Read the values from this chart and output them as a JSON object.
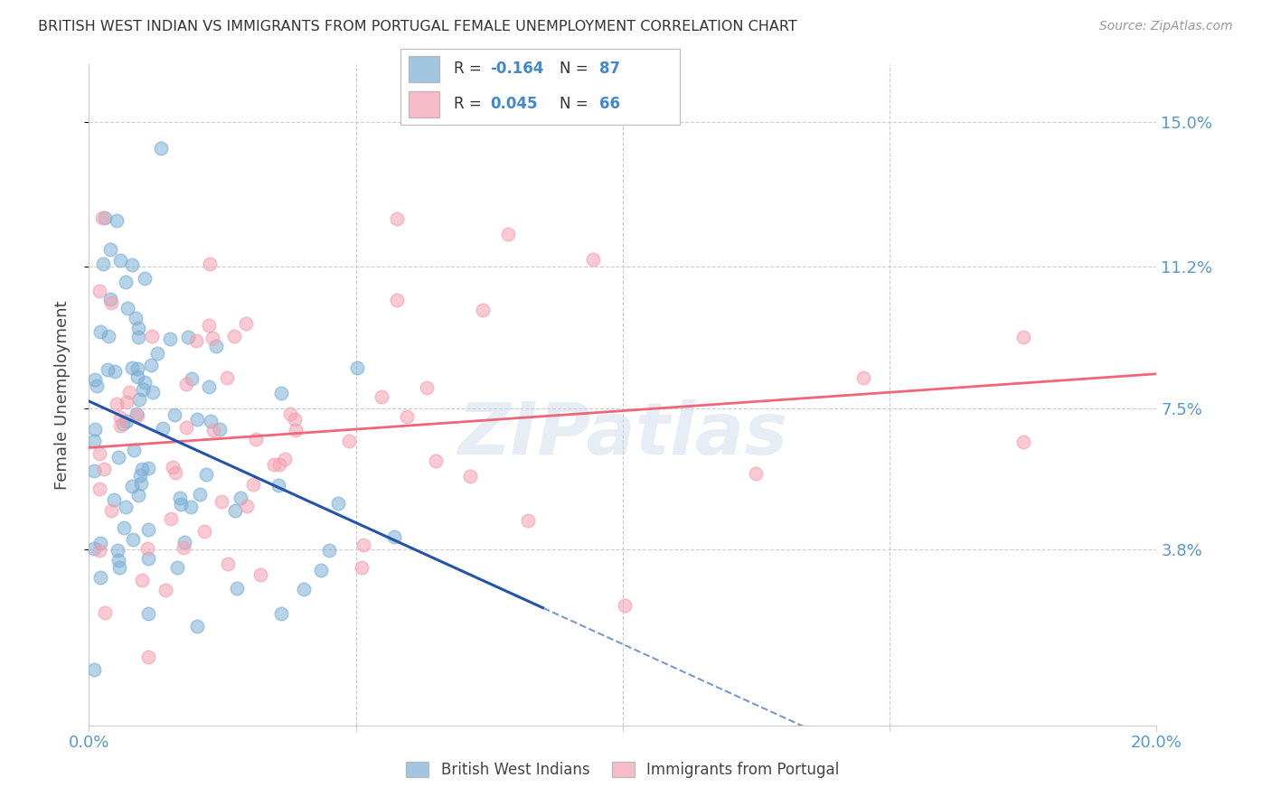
{
  "title": "BRITISH WEST INDIAN VS IMMIGRANTS FROM PORTUGAL FEMALE UNEMPLOYMENT CORRELATION CHART",
  "source": "Source: ZipAtlas.com",
  "ylabel": "Female Unemployment",
  "ytick_labels": [
    "15.0%",
    "11.2%",
    "7.5%",
    "3.8%"
  ],
  "ytick_values": [
    0.15,
    0.112,
    0.075,
    0.038
  ],
  "xlim": [
    0.0,
    0.2
  ],
  "ylim": [
    -0.01,
    0.165
  ],
  "color_blue": "#7BAFD4",
  "color_pink": "#F4A0B0",
  "trendline_blue_color": "#2255AA",
  "trendline_pink_color": "#EE6677",
  "watermark_color": "#C8D8E8",
  "R1": -0.164,
  "N1": 87,
  "R2": 0.045,
  "N2": 66,
  "legend_label1": "British West Indians",
  "legend_label2": "Immigrants from Portugal",
  "grid_color": "#CCCCCC",
  "spine_color": "#CCCCCC",
  "tick_color": "#5599CC",
  "ylabel_color": "#444444",
  "title_color": "#333333",
  "source_color": "#999999",
  "legend_text_color_label": "#333333",
  "legend_text_color_value": "#4488CC"
}
